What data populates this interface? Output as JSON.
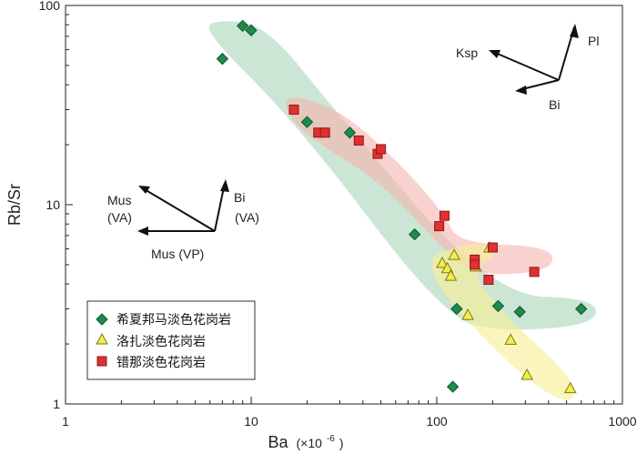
{
  "chart_data": {
    "type": "scatter",
    "title": "",
    "xlabel": "Ba",
    "xlabel_unit": "(×10",
    "xlabel_exp": "-6",
    "xlabel_close": ")",
    "ylabel": "Rb/Sr",
    "xscale": "log",
    "yscale": "log",
    "xlim": [
      1,
      1000
    ],
    "ylim": [
      1,
      100
    ],
    "x_ticks": [
      {
        "value": 1,
        "label": "1"
      },
      {
        "value": 10,
        "label": "10"
      },
      {
        "value": 100,
        "label": "100"
      },
      {
        "value": 1000,
        "label": "1000"
      }
    ],
    "y_ticks": [
      {
        "value": 1,
        "label": "1"
      },
      {
        "value": 10,
        "label": "10"
      },
      {
        "value": 100,
        "label": "100"
      }
    ],
    "grid": false,
    "legend_position": "bottom-left",
    "series": [
      {
        "name": "希夏邦马淡色花岗岩",
        "marker": "diamond",
        "color": "#1e8a4c",
        "stroke": "#0f5a30",
        "points": [
          [
            7,
            54
          ],
          [
            9,
            79
          ],
          [
            10,
            75
          ],
          [
            20,
            26
          ],
          [
            34,
            23
          ],
          [
            76,
            7.1
          ],
          [
            128,
            3.0
          ],
          [
            214,
            3.1
          ],
          [
            280,
            2.9
          ],
          [
            600,
            3.0
          ],
          [
            122,
            1.22
          ]
        ]
      },
      {
        "name": "洛扎淡色花岗岩",
        "marker": "triangle",
        "color": "#f3ee4a",
        "stroke": "#7a7a1a",
        "points": [
          [
            107,
            5.1
          ],
          [
            114,
            4.8
          ],
          [
            119,
            4.4
          ],
          [
            124,
            5.6
          ],
          [
            147,
            2.8
          ],
          [
            162,
            4.9
          ],
          [
            192,
            6.1
          ],
          [
            250,
            2.1
          ],
          [
            306,
            1.4
          ],
          [
            524,
            1.2
          ]
        ]
      },
      {
        "name": "错那淡色花岗岩",
        "marker": "square",
        "color": "#e03030",
        "stroke": "#8a1a1a",
        "points": [
          [
            17,
            30
          ],
          [
            23,
            23
          ],
          [
            25,
            23
          ],
          [
            38,
            21
          ],
          [
            48,
            18
          ],
          [
            50,
            19
          ],
          [
            103,
            7.8
          ],
          [
            110,
            8.8
          ],
          [
            160,
            5.3
          ],
          [
            160,
            5.0
          ],
          [
            190,
            4.2
          ],
          [
            200,
            6.1
          ],
          [
            335,
            4.6
          ]
        ]
      }
    ],
    "fields": [
      {
        "color": "#b7dcc3",
        "opacity": 0.7,
        "path": [
          [
            6.5,
            85
          ],
          [
            12,
            80
          ],
          [
            28,
            30
          ],
          [
            200,
            3.5
          ],
          [
            720,
            3.4
          ],
          [
            720,
            2.5
          ],
          [
            230,
            2.3
          ],
          [
            110,
            2.7
          ],
          [
            18,
            25
          ],
          [
            5.5,
            75
          ]
        ]
      },
      {
        "color": "#f5b3ad",
        "opacity": 0.6,
        "path": [
          [
            16,
            36
          ],
          [
            30,
            30
          ],
          [
            60,
            17
          ],
          [
            110,
            9.0
          ],
          [
            130,
            6.4
          ],
          [
            420,
            6.2
          ],
          [
            420,
            4.6
          ],
          [
            150,
            4.4
          ],
          [
            100,
            6.5
          ],
          [
            50,
            13
          ],
          [
            20,
            22
          ],
          [
            15,
            30
          ]
        ]
      },
      {
        "color": "#f6f09a",
        "opacity": 0.65,
        "path": [
          [
            95,
            5.7
          ],
          [
            180,
            6.6
          ],
          [
            220,
            5.8
          ],
          [
            150,
            4.6
          ],
          [
            240,
            2.7
          ],
          [
            520,
            1.4
          ],
          [
            560,
            1.05
          ],
          [
            440,
            1.05
          ],
          [
            260,
            1.5
          ],
          [
            115,
            3.3
          ],
          [
            92,
            4.8
          ]
        ]
      }
    ],
    "annotations": {
      "top_right": {
        "ksp": "Ksp",
        "pl": "Pl",
        "bi": "Bi"
      },
      "left": {
        "mus_va": "Mus",
        "mus_va_paren": "(VA)",
        "bi_va": "Bi",
        "bi_va_paren": "(VA)",
        "mus_vp": "Mus (VP)"
      }
    }
  }
}
